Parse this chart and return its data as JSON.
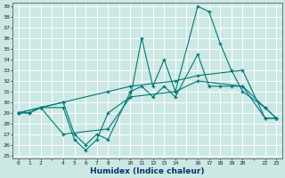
{
  "xlabel": "Humidex (Indice chaleur)",
  "background_color": "#cce8e4",
  "grid_color": "#ffffff",
  "line_color": "#007878",
  "ylim": [
    25,
    39
  ],
  "xlim": [
    -0.5,
    23.5
  ],
  "yticks": [
    25,
    26,
    27,
    28,
    29,
    30,
    31,
    32,
    33,
    34,
    35,
    36,
    37,
    38,
    39
  ],
  "xtick_positions": [
    0,
    1,
    2,
    3,
    4,
    5,
    6,
    7,
    8,
    9,
    10,
    11,
    12,
    13,
    14,
    15,
    16,
    17,
    18,
    19,
    20,
    21,
    22,
    23
  ],
  "xtick_labels": [
    "0",
    "1",
    "2",
    "",
    "4",
    "5",
    "6",
    "7",
    "8",
    "",
    "10",
    "11",
    "12",
    "13",
    "14",
    "",
    "16",
    "17",
    "18",
    "19",
    "20",
    "",
    "22",
    "23"
  ],
  "series": [
    {
      "x": [
        0,
        1,
        2,
        4,
        5,
        6,
        7,
        8,
        10,
        11,
        12,
        13,
        14,
        16,
        17,
        18,
        19,
        20,
        22,
        23
      ],
      "y": [
        29,
        29,
        29.5,
        29.5,
        26.5,
        25.5,
        26.5,
        29,
        30.5,
        36,
        31.5,
        34,
        31,
        39,
        38.5,
        35.5,
        33,
        31,
        29.5,
        28.5
      ]
    },
    {
      "x": [
        0,
        1,
        2,
        4,
        5,
        6,
        7,
        8,
        10,
        11,
        12,
        13,
        14,
        16,
        17,
        18,
        19,
        20,
        22,
        23
      ],
      "y": [
        29,
        29,
        29.5,
        30,
        27,
        26,
        27,
        26.5,
        31,
        31.5,
        30.5,
        31.5,
        30.5,
        34.5,
        31.5,
        31.5,
        31.5,
        31.5,
        29.5,
        28.5
      ]
    },
    {
      "x": [
        0,
        2,
        4,
        8,
        10,
        14,
        16,
        20,
        22,
        23
      ],
      "y": [
        29,
        29.5,
        30,
        31,
        31.5,
        32,
        32.5,
        33,
        28.5,
        28.5
      ]
    },
    {
      "x": [
        0,
        2,
        4,
        8,
        10,
        14,
        16,
        20,
        22,
        23
      ],
      "y": [
        29,
        29.5,
        27,
        27.5,
        30.5,
        31,
        32,
        31.5,
        28.5,
        28.5
      ]
    }
  ]
}
